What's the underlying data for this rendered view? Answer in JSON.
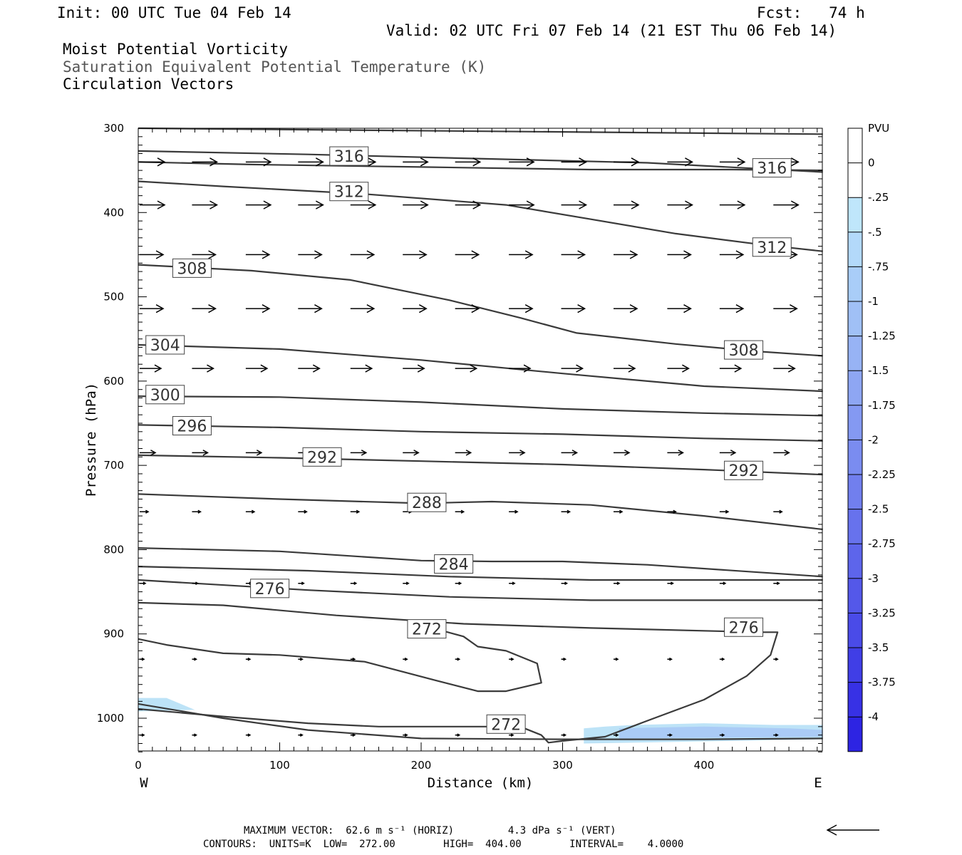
{
  "header": {
    "init": "Init: 00 UTC Tue 04 Feb 14",
    "fcst": "Fcst:   74 h",
    "valid": "Valid: 02 UTC Fri 07 Feb 14 (21 EST Thu 06 Feb 14)",
    "title1": "Moist Potential Vorticity",
    "title2": "Saturation Equivalent Potential Temperature (K)",
    "title3": "Circulation Vectors"
  },
  "colors": {
    "contour": "#3a3a3a",
    "mpv_light": "#bde3f7",
    "mpv_mid": "#9bb8f5",
    "scale": [
      "#ffffff",
      "#ffffff",
      "#bfe6fb",
      "#b3d9fa",
      "#a9cdf8",
      "#a0c0f6",
      "#97b3f5",
      "#8ea6f3",
      "#8499f2",
      "#7a8cf0",
      "#717fee",
      "#6772ed",
      "#5d65eb",
      "#5458e9",
      "#4a4be8",
      "#403ee6",
      "#3731e5",
      "#2d24e3"
    ]
  },
  "chart_data": {
    "type": "cross-section",
    "xlabel": "Distance (km)",
    "ylabel": "Pressure (hPa)",
    "xlim": [
      0,
      484
    ],
    "ylim": [
      1040,
      300
    ],
    "x_ticks": [
      "0",
      "100",
      "200",
      "300",
      "400"
    ],
    "y_ticks": [
      "300",
      "400",
      "500",
      "600",
      "700",
      "800",
      "900",
      "1000"
    ],
    "left_end": "W",
    "right_end": "E",
    "colorbar": {
      "unit": "PVU",
      "labels": [
        "0",
        "-.25",
        "-.5",
        "-.75",
        "-1",
        "-1.25",
        "-1.5",
        "-1.75",
        "-2",
        "-2.25",
        "-2.5",
        "-2.75",
        "-3",
        "-3.25",
        "-3.5",
        "-3.75",
        "-4"
      ]
    },
    "contour_labels": [
      {
        "text": "316",
        "x": 149,
        "p": 333
      },
      {
        "text": "316",
        "x": 448,
        "p": 347
      },
      {
        "text": "312",
        "x": 149,
        "p": 375
      },
      {
        "text": "312",
        "x": 448,
        "p": 441
      },
      {
        "text": "308",
        "x": 38,
        "p": 466
      },
      {
        "text": "308",
        "x": 428,
        "p": 563
      },
      {
        "text": "304",
        "x": 19,
        "p": 557
      },
      {
        "text": "300",
        "x": 19,
        "p": 616
      },
      {
        "text": "296",
        "x": 38,
        "p": 653
      },
      {
        "text": "292",
        "x": 130,
        "p": 690
      },
      {
        "text": "292",
        "x": 428,
        "p": 706
      },
      {
        "text": "288",
        "x": 204,
        "p": 744
      },
      {
        "text": "284",
        "x": 223,
        "p": 817
      },
      {
        "text": "276",
        "x": 93,
        "p": 846
      },
      {
        "text": "276",
        "x": 428,
        "p": 892
      },
      {
        "text": "272",
        "x": 204,
        "p": 894
      },
      {
        "text": "272",
        "x": 260,
        "p": 1007
      }
    ],
    "contours": [
      [
        [
          0,
          300
        ],
        [
          484,
          307
        ]
      ],
      [
        [
          0,
          327
        ],
        [
          120,
          331
        ],
        [
          240,
          336
        ],
        [
          360,
          341
        ],
        [
          484,
          352
        ]
      ],
      [
        [
          0,
          340
        ],
        [
          80,
          343
        ],
        [
          200,
          346
        ],
        [
          320,
          349
        ],
        [
          420,
          349
        ],
        [
          484,
          350
        ]
      ],
      [
        [
          0,
          363
        ],
        [
          60,
          369
        ],
        [
          160,
          378
        ],
        [
          260,
          391
        ],
        [
          320,
          408
        ],
        [
          380,
          425
        ],
        [
          440,
          438
        ],
        [
          484,
          446
        ]
      ],
      [
        [
          0,
          462
        ],
        [
          80,
          469
        ],
        [
          150,
          480
        ],
        [
          220,
          504
        ],
        [
          270,
          525
        ],
        [
          310,
          543
        ],
        [
          380,
          556
        ],
        [
          440,
          565
        ],
        [
          484,
          570
        ]
      ],
      [
        [
          0,
          557
        ],
        [
          100,
          562
        ],
        [
          200,
          575
        ],
        [
          300,
          591
        ],
        [
          400,
          606
        ],
        [
          484,
          612
        ]
      ],
      [
        [
          0,
          618
        ],
        [
          100,
          619
        ],
        [
          200,
          625
        ],
        [
          300,
          633
        ],
        [
          400,
          638
        ],
        [
          484,
          641
        ]
      ],
      [
        [
          0,
          652
        ],
        [
          100,
          655
        ],
        [
          200,
          660
        ],
        [
          300,
          663
        ],
        [
          400,
          668
        ],
        [
          484,
          671
        ]
      ],
      [
        [
          0,
          688
        ],
        [
          100,
          691
        ],
        [
          200,
          695
        ],
        [
          300,
          699
        ],
        [
          400,
          705
        ],
        [
          484,
          711
        ]
      ],
      [
        [
          0,
          734
        ],
        [
          100,
          740
        ],
        [
          200,
          745
        ],
        [
          250,
          743
        ],
        [
          320,
          747
        ],
        [
          400,
          760
        ],
        [
          484,
          776
        ]
      ],
      [
        [
          0,
          798
        ],
        [
          100,
          802
        ],
        [
          200,
          813
        ],
        [
          250,
          814
        ],
        [
          300,
          814
        ],
        [
          360,
          818
        ],
        [
          484,
          832
        ]
      ],
      [
        [
          0,
          820
        ],
        [
          120,
          825
        ],
        [
          220,
          832
        ],
        [
          320,
          836
        ],
        [
          484,
          836
        ]
      ],
      [
        [
          0,
          836
        ],
        [
          120,
          848
        ],
        [
          220,
          856
        ],
        [
          320,
          860
        ],
        [
          484,
          860
        ]
      ],
      [
        [
          0,
          863
        ],
        [
          60,
          866
        ],
        [
          140,
          878
        ],
        [
          230,
          888
        ],
        [
          320,
          893
        ],
        [
          440,
          898
        ],
        [
          452,
          898
        ],
        [
          447,
          925
        ],
        [
          430,
          950
        ],
        [
          400,
          978
        ],
        [
          360,
          1003
        ],
        [
          330,
          1022
        ],
        [
          300,
          1027
        ],
        [
          290,
          1029
        ],
        [
          285,
          1020
        ],
        [
          270,
          1010
        ],
        [
          220,
          1010
        ],
        [
          170,
          1010
        ],
        [
          120,
          1006
        ],
        [
          60,
          998
        ],
        [
          0,
          989
        ]
      ],
      [
        [
          0,
          906
        ],
        [
          20,
          913
        ],
        [
          60,
          923
        ],
        [
          100,
          925
        ],
        [
          160,
          933
        ],
        [
          210,
          955
        ],
        [
          240,
          968
        ],
        [
          260,
          968
        ],
        [
          275,
          962
        ],
        [
          285,
          958
        ],
        [
          282,
          935
        ],
        [
          260,
          920
        ],
        [
          240,
          915
        ],
        [
          230,
          903
        ],
        [
          210,
          894
        ]
      ],
      [
        [
          0,
          983
        ],
        [
          60,
          1000
        ],
        [
          120,
          1014
        ],
        [
          200,
          1024
        ],
        [
          300,
          1025
        ],
        [
          400,
          1025
        ],
        [
          484,
          1024
        ]
      ]
    ],
    "shading": [
      {
        "level": "-.25",
        "points": [
          [
            0,
            976
          ],
          [
            20,
            976
          ],
          [
            40,
            990
          ],
          [
            0,
            992
          ]
        ]
      },
      {
        "level": "-.25",
        "points": [
          [
            315,
            1012
          ],
          [
            330,
            1010
          ],
          [
            350,
            1008
          ],
          [
            400,
            1006
          ],
          [
            450,
            1008
          ],
          [
            484,
            1008
          ],
          [
            484,
            1025
          ],
          [
            315,
            1030
          ]
        ]
      },
      {
        "level": "-.5",
        "points": [
          [
            340,
            1012
          ],
          [
            400,
            1010
          ],
          [
            460,
            1012
          ],
          [
            484,
            1014
          ],
          [
            484,
            1022
          ],
          [
            340,
            1024
          ]
        ]
      }
    ],
    "vectors": [
      {
        "p": 340,
        "len": 35,
        "xs": [
          0,
          37,
          75,
          112,
          149,
          186,
          223,
          261,
          298,
          335,
          373,
          410,
          448
        ]
      },
      {
        "p": 391,
        "len": 35,
        "xs": [
          0,
          37,
          75,
          112,
          149,
          186,
          223,
          261,
          298,
          335,
          373,
          410,
          448
        ]
      },
      {
        "p": 450,
        "len": 33,
        "xs": [
          0,
          37,
          75,
          112,
          149,
          186,
          223,
          261,
          298,
          335,
          373,
          410,
          448
        ]
      },
      {
        "p": 514,
        "len": 33,
        "xs": [
          0,
          37,
          75,
          112,
          149,
          186,
          223,
          261,
          298,
          335,
          373,
          410,
          448
        ]
      },
      {
        "p": 585,
        "len": 30,
        "xs": [
          0,
          37,
          75,
          112,
          149,
          186,
          223,
          261,
          298,
          335,
          373,
          410,
          448
        ]
      },
      {
        "p": 685,
        "len": 22,
        "xs": [
          0,
          37,
          75,
          112,
          149,
          186,
          223,
          261,
          298,
          335,
          373,
          410,
          448
        ]
      },
      {
        "p": 755,
        "len": 12,
        "xs": [
          0,
          37,
          75,
          112,
          149,
          186,
          223,
          261,
          298,
          335,
          373,
          410,
          448
        ]
      },
      {
        "p": 840,
        "len": 8,
        "xs": [
          0,
          37,
          75,
          112,
          149,
          186,
          223,
          261,
          298,
          335,
          373,
          410,
          448
        ]
      },
      {
        "p": 930,
        "len": 6,
        "xs": [
          0,
          37,
          75,
          112,
          149,
          186,
          223,
          261,
          298,
          335,
          373,
          410,
          448
        ]
      },
      {
        "p": 1020,
        "len": 6,
        "xs": [
          0,
          37,
          75,
          112,
          149,
          186,
          223,
          261,
          298,
          335,
          373,
          410,
          448
        ]
      }
    ]
  },
  "footer": {
    "line1": "MAXIMUM VECTOR:  62.6 m s⁻¹ (HORIZ)         4.3 dPa s⁻¹ (VERT)",
    "line2": "CONTOURS:  UNITS=K  LOW=  272.00        HIGH=  404.00        INTERVAL=    4.0000"
  }
}
